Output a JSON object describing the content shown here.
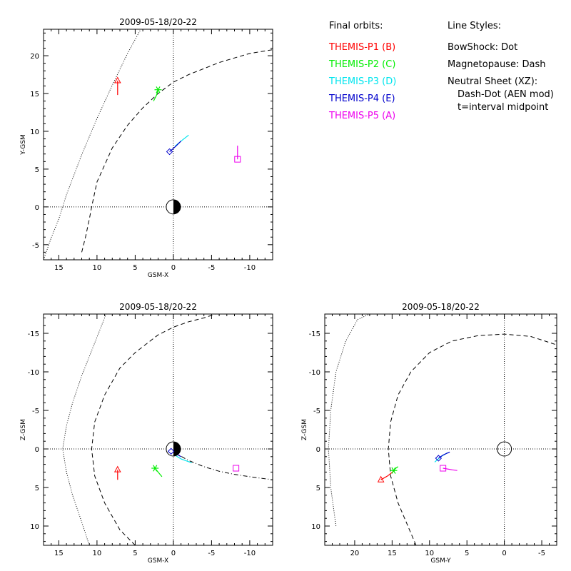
{
  "colors": {
    "P1": "#ff0000",
    "P2": "#00ee00",
    "P3": "#00e5ee",
    "P4": "#0000cc",
    "P5": "#ee00ee",
    "axis": "#000000"
  },
  "legend": {
    "orbits_title": "Final orbits:",
    "probes": [
      {
        "label": "THEMIS-P1 (B)",
        "color": "#ff0000"
      },
      {
        "label": "THEMIS-P2 (C)",
        "color": "#00ee00"
      },
      {
        "label": "THEMIS-P3 (D)",
        "color": "#00e5ee"
      },
      {
        "label": "THEMIS-P4 (E)",
        "color": "#0000cc"
      },
      {
        "label": "THEMIS-P5 (A)",
        "color": "#ee00ee"
      }
    ],
    "styles_title": "Line Styles:",
    "styles": [
      "BowShock: Dot",
      "Magnetopause: Dash",
      "Neutral Sheet (XZ):",
      "  Dash-Dot (AEN mod)",
      "  t=interval midpoint"
    ]
  },
  "chart_data": [
    {
      "type": "line",
      "title": "2009-05-18/20-22",
      "xlabel": "GSM-X",
      "ylabel": "Y-GSM",
      "xlim": [
        17,
        -13
      ],
      "ylim": [
        23.5,
        -7
      ],
      "xticks": [
        15,
        10,
        5,
        0,
        -5,
        -10
      ],
      "yticks": [
        -5,
        0,
        5,
        10,
        15,
        20
      ],
      "earth": "day-night",
      "series": [
        {
          "probe": "P1",
          "marker": "triangle",
          "x": [
            7.3,
            7.3
          ],
          "y": [
            16.7,
            14.8
          ]
        },
        {
          "probe": "P2",
          "marker": "asterisk",
          "x": [
            2.0,
            2.2,
            2.6
          ],
          "y": [
            15.5,
            14.8,
            14.0
          ]
        },
        {
          "probe": "P3",
          "marker": "none",
          "x": [
            -0.2,
            -1.0,
            -2.0
          ],
          "y": [
            8.0,
            8.7,
            9.5
          ]
        },
        {
          "probe": "P4",
          "marker": "diamond",
          "x": [
            0.5,
            -0.3,
            -1.0
          ],
          "y": [
            7.3,
            8.0,
            8.7
          ]
        },
        {
          "probe": "P5",
          "marker": "square",
          "x": [
            -8.4,
            -8.4
          ],
          "y": [
            6.3,
            8.1
          ]
        }
      ],
      "bowshock": {
        "x": [
          17,
          16,
          15,
          14.5,
          14,
          12,
          10,
          8,
          6,
          4
        ],
        "y": [
          -7,
          -4.1,
          -1.6,
          0,
          1.6,
          6.9,
          11.7,
          16.1,
          20.3,
          24.0
        ]
      },
      "magnetopause": {
        "x": [
          12,
          11.5,
          11,
          10.7,
          10,
          8,
          6,
          4,
          2,
          0,
          -2,
          -4,
          -6,
          -8,
          -10,
          -13
        ],
        "y": [
          -6,
          -4,
          -1.6,
          0,
          3.3,
          7.8,
          10.8,
          13.1,
          15.0,
          16.5,
          17.5,
          18.3,
          19.1,
          19.7,
          20.3,
          20.8
        ]
      }
    },
    {
      "type": "line",
      "title": "2009-05-18/20-22",
      "xlabel": "GSM-X",
      "ylabel": "Z-GSM",
      "xlim": [
        17,
        -13
      ],
      "ylim": [
        -17.5,
        12.5
      ],
      "xticks": [
        15,
        10,
        5,
        0,
        -5,
        -10
      ],
      "yticks": [
        10,
        5,
        0,
        -5,
        -10,
        -15
      ],
      "earth": "day-night",
      "series": [
        {
          "probe": "P1",
          "marker": "triangle",
          "x": [
            7.3,
            7.3
          ],
          "y": [
            2.7,
            4.0
          ]
        },
        {
          "probe": "P2",
          "marker": "asterisk",
          "x": [
            2.4,
            2.0,
            1.5
          ],
          "y": [
            2.5,
            3.0,
            3.6
          ]
        },
        {
          "probe": "P3",
          "marker": "none",
          "x": [
            -0.2,
            -1.0,
            -2.4
          ],
          "y": [
            0.8,
            1.3,
            1.8
          ]
        },
        {
          "probe": "P4",
          "marker": "diamond",
          "x": [
            0.3,
            -0.3,
            -1.0
          ],
          "y": [
            0.3,
            0.6,
            1.0
          ]
        },
        {
          "probe": "P5",
          "marker": "square",
          "x": [
            -8.2
          ],
          "y": [
            2.5
          ]
        }
      ],
      "bowshock": {
        "x": [
          11,
          12,
          13.2,
          14,
          14.5,
          14,
          13.2,
          12,
          10,
          8.8
        ],
        "y": [
          12.5,
          9.5,
          6.0,
          3.0,
          0,
          -3.0,
          -6.0,
          -9.5,
          -14.5,
          -17.5
        ]
      },
      "magnetopause": {
        "x": [
          5,
          7,
          9,
          10.3,
          10.7,
          10.3,
          9,
          7,
          5,
          2,
          0,
          -2,
          -4,
          -5.5
        ],
        "y": [
          12.5,
          10.5,
          7,
          3.5,
          0,
          -3.5,
          -7,
          -10.5,
          -12.5,
          -14.8,
          -15.8,
          -16.5,
          -17.0,
          -17.5
        ]
      },
      "neutral_sheet": {
        "x": [
          0,
          -2,
          -4,
          -6,
          -8,
          -10,
          -13
        ],
        "y": [
          0.4,
          1.5,
          2.3,
          2.9,
          3.3,
          3.6,
          4.0
        ]
      }
    },
    {
      "type": "line",
      "title": "2009-05-18/20-22",
      "xlabel": "GSM-Y",
      "ylabel": "Z-GSM",
      "xlim": [
        24,
        -7
      ],
      "ylim": [
        -17.5,
        12.5
      ],
      "xticks": [
        20,
        15,
        10,
        5,
        0,
        -5
      ],
      "yticks": [
        10,
        5,
        0,
        -5,
        -10,
        -15
      ],
      "earth": "full",
      "series": [
        {
          "probe": "P1",
          "marker": "triangle",
          "x": [
            16.5,
            15.6,
            14.7
          ],
          "y": [
            4.0,
            3.5,
            2.8
          ]
        },
        {
          "probe": "P2",
          "marker": "asterisk",
          "x": [
            14.8,
            14.5,
            14.2
          ],
          "y": [
            2.8,
            2.5,
            2.3
          ]
        },
        {
          "probe": "P3",
          "marker": "none",
          "x": [
            9.3,
            8.5,
            7.6
          ],
          "y": [
            1.7,
            1.0,
            0.5
          ]
        },
        {
          "probe": "P4",
          "marker": "diamond",
          "x": [
            8.8,
            8.2,
            7.3
          ],
          "y": [
            1.2,
            0.8,
            0.4
          ]
        },
        {
          "probe": "P5",
          "marker": "square",
          "x": [
            8.2,
            7.0,
            6.3
          ],
          "y": [
            2.5,
            2.7,
            2.8
          ]
        }
      ],
      "bowshock": {
        "x": [
          22.5,
          23.2,
          23.5,
          23.2,
          22.5,
          21.2,
          19.6,
          18
        ],
        "y": [
          10,
          5,
          0,
          -5,
          -10,
          -14,
          -16.8,
          -17.5
        ]
      },
      "magnetopause": {
        "x": [
          11.8,
          14.2,
          15.2,
          15.5,
          15.2,
          14.2,
          12.5,
          10,
          7,
          3.5,
          0,
          -3.5,
          -7
        ],
        "y": [
          12.5,
          7,
          3.5,
          0,
          -3.5,
          -7,
          -10,
          -12.5,
          -14,
          -14.7,
          -14.9,
          -14.6,
          -13.5
        ]
      }
    }
  ]
}
